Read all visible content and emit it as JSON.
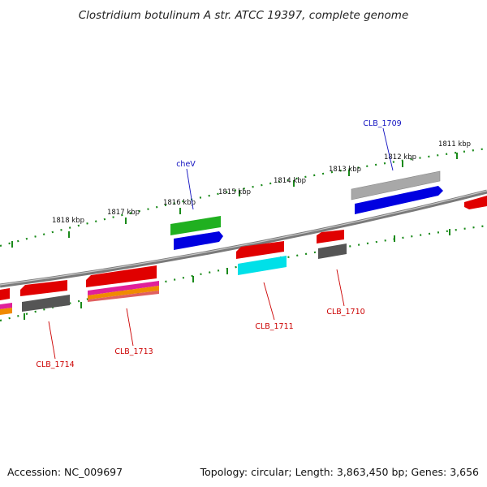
{
  "title": "Clostridium botulinum A str. ATCC 19397, complete genome",
  "footer": {
    "accession": "Accession: NC_009697",
    "summary": "Topology: circular; Length: 3,863,450 bp; Genes: 3,656"
  },
  "ticks": [
    {
      "label": "1811 kbp"
    },
    {
      "label": "1812 kbp"
    },
    {
      "label": "1813 kbp"
    },
    {
      "label": "1814 kbp"
    },
    {
      "label": "1815 kbp"
    },
    {
      "label": "1816 kbp"
    },
    {
      "label": "1817 kbp"
    },
    {
      "label": "1818 kbp"
    }
  ],
  "gene_labels": [
    {
      "name": "CLB_1709",
      "color": "#1010c0"
    },
    {
      "name": "cheV",
      "color": "#1010c0"
    },
    {
      "name": "CLB_1710",
      "color": "#cc0000"
    },
    {
      "name": "CLB_1711",
      "color": "#cc0000"
    },
    {
      "name": "CLB_1713",
      "color": "#cc0000"
    },
    {
      "name": "CLB_1714",
      "color": "#cc0000"
    }
  ],
  "colors": {
    "backbone": "#7a7a7a",
    "tick_dots": "#1a8a1a",
    "cds_red": "#e00000",
    "cds_blue": "#0000e0",
    "cds_green": "#20b020",
    "cds_gray": "#a8a8a8",
    "cds_dark": "#555555",
    "cds_cyan": "#00e0e8",
    "cds_magenta": "#e0209a",
    "cds_orange": "#f08a00"
  }
}
